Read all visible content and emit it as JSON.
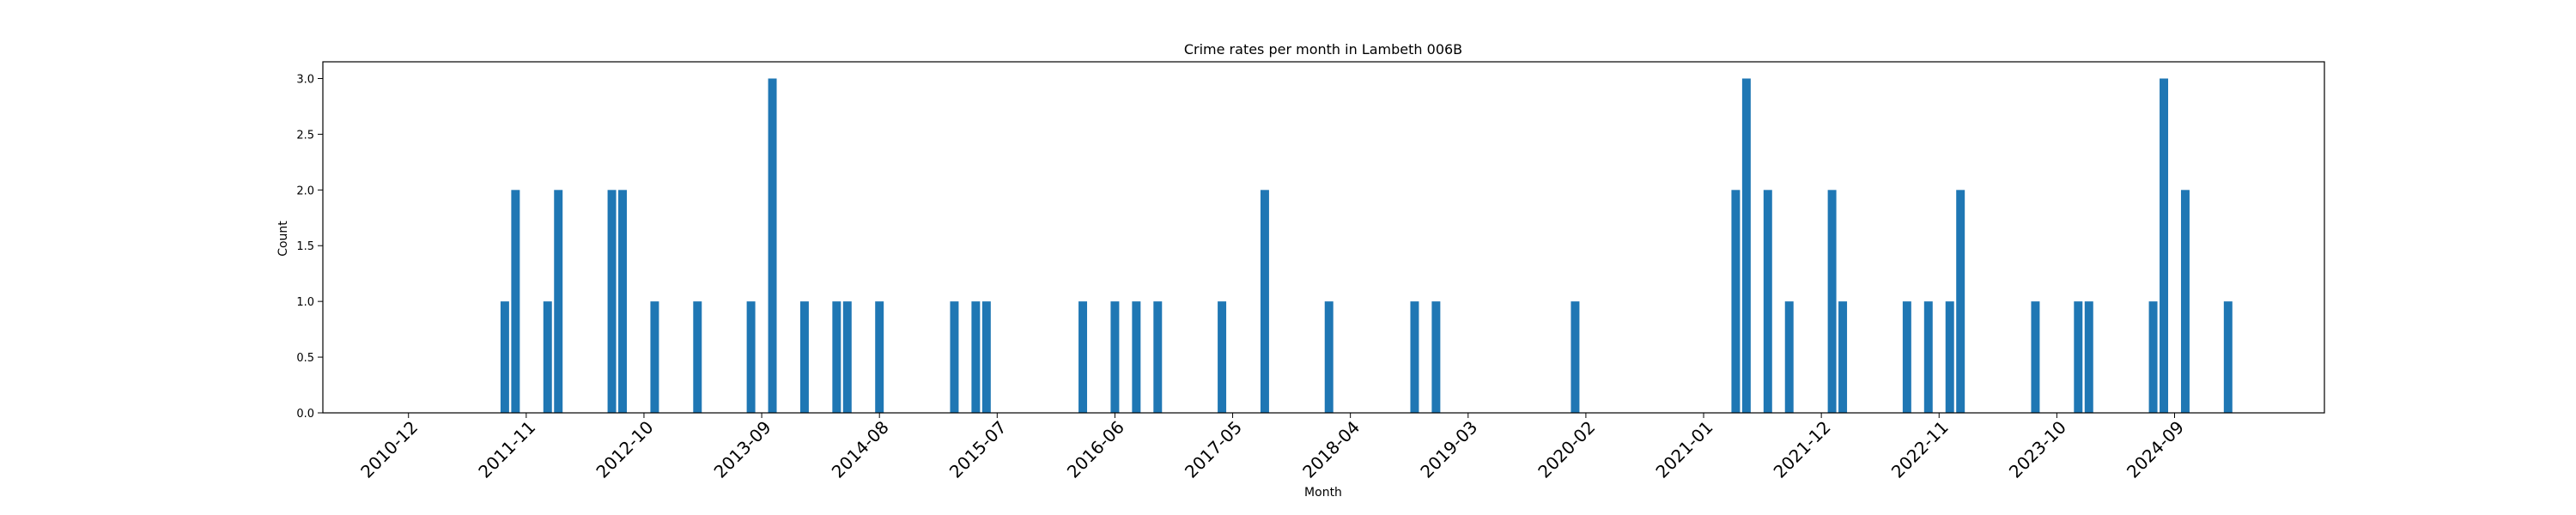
{
  "chart_data": {
    "type": "bar",
    "title": "Crime rates per month in Lambeth 006B",
    "xlabel": "Month",
    "ylabel": "Count",
    "ylim": [
      0,
      3.15
    ],
    "xlim": [
      "2010-04",
      "2025-11"
    ],
    "grid": false,
    "bar_color": "#1f77b4",
    "y_ticks": [
      "0.0",
      "0.5",
      "1.0",
      "1.5",
      "2.0",
      "2.5",
      "3.0"
    ],
    "x_ticks": [
      "2010-12",
      "2011-11",
      "2012-10",
      "2013-09",
      "2014-08",
      "2015-07",
      "2016-06",
      "2017-05",
      "2018-04",
      "2019-03",
      "2020-02",
      "2021-01",
      "2021-12",
      "2022-11",
      "2023-10",
      "2024-09"
    ],
    "categories": [
      "2011-09",
      "2011-10",
      "2012-01",
      "2012-02",
      "2012-07",
      "2012-08",
      "2012-11",
      "2013-03",
      "2013-08",
      "2013-10",
      "2014-01",
      "2014-04",
      "2014-05",
      "2014-08",
      "2015-03",
      "2015-05",
      "2015-06",
      "2016-03",
      "2016-06",
      "2016-08",
      "2016-10",
      "2017-04",
      "2017-08",
      "2018-02",
      "2018-10",
      "2018-12",
      "2020-01",
      "2021-04",
      "2021-05",
      "2021-07",
      "2021-09",
      "2022-01",
      "2022-02",
      "2022-08",
      "2022-10",
      "2022-12",
      "2023-01",
      "2023-08",
      "2023-12",
      "2024-01",
      "2024-07",
      "2024-08",
      "2024-10",
      "2025-02"
    ],
    "values": [
      1,
      2,
      1,
      2,
      2,
      2,
      1,
      1,
      1,
      3,
      1,
      1,
      1,
      1,
      1,
      1,
      1,
      1,
      1,
      1,
      1,
      1,
      2,
      1,
      1,
      1,
      1,
      2,
      3,
      2,
      1,
      2,
      1,
      1,
      1,
      1,
      2,
      1,
      1,
      1,
      1,
      3,
      2,
      1
    ]
  }
}
